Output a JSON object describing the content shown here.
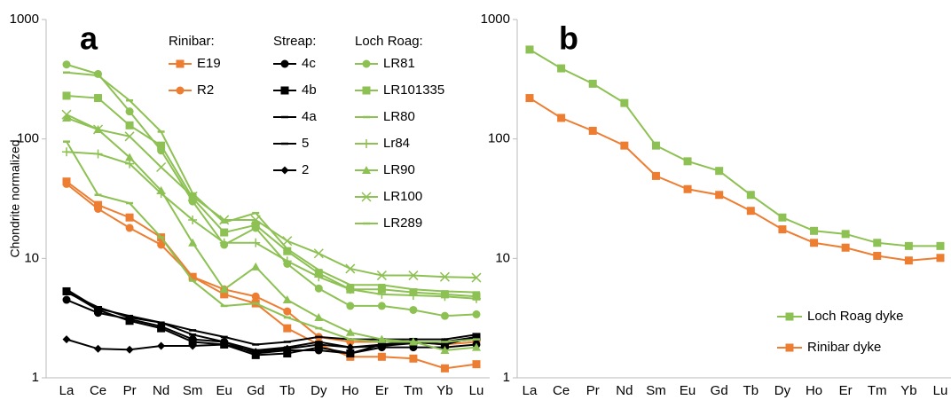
{
  "chart_data": [
    {
      "type": "line",
      "panel_label": "a",
      "y_label": "Chondrite normalized",
      "log_y": true,
      "categories": [
        "La",
        "Ce",
        "Pr",
        "Nd",
        "Sm",
        "Eu",
        "Gd",
        "Tb",
        "Dy",
        "Ho",
        "Er",
        "Tm",
        "Yb",
        "Lu"
      ],
      "ylim": [
        1,
        1000
      ],
      "yticks": [
        1,
        10,
        100,
        1000
      ],
      "groups": [
        {
          "title": "Rinibar:",
          "series": [
            {
              "name": "E19",
              "color": "#ED7D31",
              "marker": "square",
              "values": [
                44,
                28,
                22,
                15,
                7,
                5,
                4.2,
                2.6,
                1.9,
                1.5,
                1.5,
                1.45,
                1.2,
                1.3
              ]
            },
            {
              "name": "R2",
              "color": "#ED7D31",
              "marker": "circle",
              "values": [
                42,
                26,
                18,
                13,
                7,
                5.5,
                4.8,
                3.6,
                2.2,
                2.0,
                2.0,
                2.0,
                1.9,
                2.0
              ]
            }
          ]
        },
        {
          "title": "Streap:",
          "series": [
            {
              "name": "4c",
              "color": "#000000",
              "marker": "circle",
              "values": [
                4.5,
                3.5,
                3.1,
                2.7,
                2.1,
                2.0,
                1.6,
                1.7,
                1.7,
                1.6,
                1.8,
                1.8,
                1.8,
                1.9
              ]
            },
            {
              "name": "4b",
              "color": "#000000",
              "marker": "square",
              "values": [
                5.3,
                3.7,
                3.0,
                2.6,
                2.0,
                1.9,
                1.55,
                1.6,
                1.8,
                1.6,
                1.9,
                2.0,
                1.9,
                2.2
              ]
            },
            {
              "name": "4a",
              "color": "#000000",
              "marker": "dash",
              "values": [
                5.5,
                3.8,
                3.3,
                2.9,
                2.3,
                2.0,
                1.7,
                1.8,
                2.0,
                1.8,
                1.9,
                2.0,
                2.0,
                2.2
              ]
            },
            {
              "name": "5",
              "color": "#000000",
              "marker": "dash",
              "values": [
                5.2,
                3.9,
                3.2,
                2.9,
                2.5,
                2.2,
                1.9,
                2.0,
                2.2,
                2.1,
                2.1,
                2.1,
                2.1,
                2.3
              ]
            },
            {
              "name": "2",
              "color": "#000000",
              "marker": "diamond",
              "values": [
                2.1,
                1.75,
                1.72,
                1.85,
                1.85,
                1.9,
                1.65,
                1.75,
                1.9,
                1.8,
                1.85,
                1.95,
                2.0,
                2.1
              ]
            }
          ]
        },
        {
          "title": "Loch Roag:",
          "series": [
            {
              "name": "LR81",
              "color": "#8DC153",
              "marker": "circle",
              "values": [
                420,
                350,
                170,
                80,
                30,
                13,
                18,
                9,
                5.6,
                4,
                4,
                3.7,
                3.3,
                3.4
              ]
            },
            {
              "name": "LR101335",
              "color": "#8DC153",
              "marker": "square",
              "values": [
                230,
                220,
                130,
                88,
                32,
                16.5,
                19,
                11.5,
                7.5,
                5.5,
                5.5,
                5.2,
                5,
                4.8
              ]
            },
            {
              "name": "LR80",
              "color": "#8DC153",
              "marker": "dash",
              "values": [
                360,
                340,
                210,
                115,
                35,
                20,
                24,
                12,
                8,
                6,
                6,
                5.5,
                5.3,
                5.2
              ]
            },
            {
              "name": "Lr84",
              "color": "#8DC153",
              "marker": "plus",
              "values": [
                78,
                75,
                62,
                35,
                21,
                13.5,
                13.5,
                9.5,
                7,
                5.5,
                5,
                4.9,
                4.8,
                4.6
              ]
            },
            {
              "name": "LR90",
              "color": "#8DC153",
              "marker": "triangle",
              "values": [
                150,
                120,
                70,
                37,
                13.5,
                5.5,
                8.5,
                4.5,
                3.2,
                2.4,
                2.1,
                2.0,
                1.7,
                1.8
              ]
            },
            {
              "name": "LR100",
              "color": "#8DC153",
              "marker": "x",
              "values": [
                160,
                120,
                105,
                58,
                33,
                21,
                21,
                14,
                11,
                8.2,
                7.2,
                7.2,
                7,
                6.9
              ]
            },
            {
              "name": "LR289",
              "color": "#8DC153",
              "marker": "dash",
              "values": [
                95,
                34,
                29,
                15,
                6.5,
                4,
                4.2,
                3.2,
                2.6,
                2.1,
                2.0,
                2.0,
                2.0,
                2.1
              ]
            }
          ]
        }
      ]
    },
    {
      "type": "line",
      "panel_label": "b",
      "log_y": true,
      "categories": [
        "La",
        "Ce",
        "Pr",
        "Nd",
        "Sm",
        "Eu",
        "Gd",
        "Tb",
        "Dy",
        "Ho",
        "Er",
        "Tm",
        "Yb",
        "Lu"
      ],
      "ylim": [
        1,
        1000
      ],
      "yticks": [
        1,
        10,
        100,
        1000
      ],
      "legend_position": "lower right",
      "series": [
        {
          "name": "Loch Roag dyke",
          "color": "#8DC153",
          "marker": "square",
          "values": [
            560,
            390,
            290,
            200,
            88,
            65,
            54,
            34,
            22,
            17,
            16,
            13.5,
            12.7,
            12.7
          ]
        },
        {
          "name": "Rinibar dyke",
          "color": "#ED7D31",
          "marker": "square",
          "values": [
            220,
            150,
            117,
            88,
            49,
            38,
            34,
            25,
            17.5,
            13.5,
            12.3,
            10.5,
            9.6,
            10.1
          ]
        }
      ]
    }
  ]
}
